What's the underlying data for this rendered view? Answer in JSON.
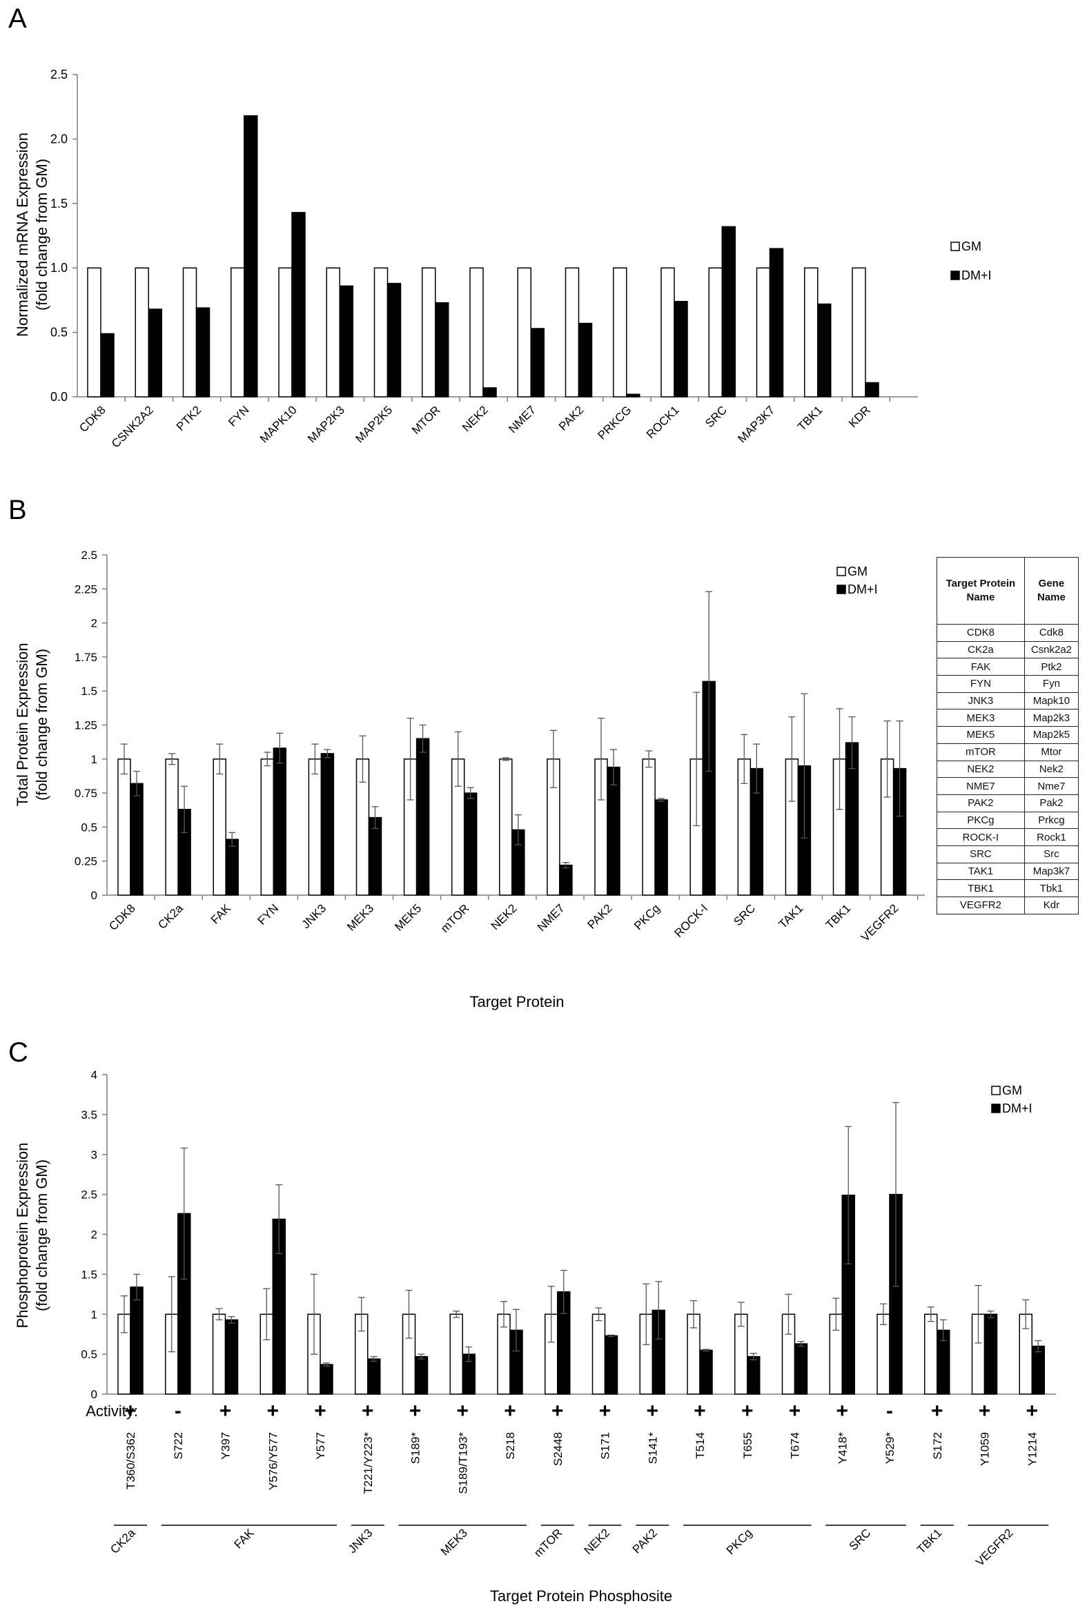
{
  "colors": {
    "gm": "#ffffff",
    "dmi": "#000000",
    "axis": "#7f7f7f",
    "text": "#000000"
  },
  "panels": [
    {
      "id": "A",
      "letter": "A",
      "chart_data": {
        "type": "bar",
        "title": "",
        "xlabel": "",
        "ylabel": [
          "Normalized mRNA Expression",
          "(fold change from GM)"
        ],
        "ylim": [
          0,
          2.5
        ],
        "yticks": [
          "0.0",
          "0.5",
          "1.0",
          "1.5",
          "2.0",
          "2.5"
        ],
        "legend": [
          "GM",
          "DM+I"
        ],
        "legend_position": "right",
        "categories": [
          "CDK8",
          "CSNK2A2",
          "PTK2",
          "FYN",
          "MAPK10",
          "MAP2K3",
          "MAP2K5",
          "MTOR",
          "NEK2",
          "NME7",
          "PAK2",
          "PRKCG",
          "ROCK1",
          "SRC",
          "MAP3K7",
          "TBK1",
          "KDR"
        ],
        "series": [
          {
            "name": "GM",
            "values": [
              1,
              1,
              1,
              1,
              1,
              1,
              1,
              1,
              1,
              1,
              1,
              1,
              1,
              1,
              1,
              1,
              1
            ]
          },
          {
            "name": "DM+I",
            "values": [
              0.49,
              0.68,
              0.69,
              2.18,
              1.43,
              0.86,
              0.88,
              0.73,
              0.07,
              0.53,
              0.57,
              0.02,
              0.74,
              1.32,
              1.15,
              0.72,
              0.11
            ]
          }
        ]
      }
    },
    {
      "id": "B",
      "letter": "B",
      "chart_data": {
        "type": "bar",
        "title": "",
        "xlabel": "Target Protein",
        "ylabel": [
          "Total Protein Expression",
          "(fold change from GM)"
        ],
        "ylim": [
          0,
          2.5
        ],
        "yticks": [
          "0",
          "0.25",
          "0.5",
          "0.75",
          "1",
          "1.25",
          "1.5",
          "1.75",
          "2",
          "2.25",
          "2.5"
        ],
        "legend": [
          "GM",
          "DM+I"
        ],
        "legend_position": "top-right",
        "categories": [
          "CDK8",
          "CK2a",
          "FAK",
          "FYN",
          "JNK3",
          "MEK3",
          "MEK5",
          "mTOR",
          "NEK2",
          "NME7",
          "PAK2",
          "PKCg",
          "ROCK-I",
          "SRC",
          "TAK1",
          "TBK1",
          "VEGFR2"
        ],
        "series": [
          {
            "name": "GM",
            "values": [
              1,
              1,
              1,
              1,
              1,
              1,
              1,
              1,
              1,
              1,
              1,
              1,
              1,
              1,
              1,
              1,
              1
            ],
            "errors": [
              0.11,
              0.04,
              0.11,
              0.05,
              0.11,
              0.17,
              0.3,
              0.2,
              0.01,
              0.21,
              0.3,
              0.06,
              0.49,
              0.18,
              0.31,
              0.37,
              0.28
            ]
          },
          {
            "name": "DM+I",
            "values": [
              0.82,
              0.63,
              0.41,
              1.08,
              1.04,
              0.57,
              1.15,
              0.75,
              0.48,
              0.22,
              0.94,
              0.7,
              1.57,
              0.93,
              0.95,
              1.12,
              0.93
            ],
            "errors": [
              0.09,
              0.17,
              0.05,
              0.11,
              0.03,
              0.08,
              0.1,
              0.04,
              0.11,
              0.02,
              0.13,
              0.01,
              0.66,
              0.18,
              0.53,
              0.19,
              0.35
            ]
          }
        ]
      }
    },
    {
      "id": "C",
      "letter": "C",
      "chart_data": {
        "type": "bar",
        "title": "",
        "xlabel": "Target Protein Phosphosite",
        "ylabel": [
          "Phosphoprotein Expression",
          "(fold change from GM)"
        ],
        "ylim": [
          0,
          4
        ],
        "yticks": [
          "0",
          "0.5",
          "1",
          "1.5",
          "2",
          "2.5",
          "3",
          "3.5",
          "4"
        ],
        "legend": [
          "GM",
          "DM+I"
        ],
        "legend_position": "top-right",
        "activity_label": "Activity:",
        "categories": [
          "T360/S362",
          "S722",
          "Y397",
          "Y576/Y577",
          "Y577",
          "T221/Y223*",
          "S189*",
          "S189/T193*",
          "S218",
          "S2448",
          "S171",
          "S141*",
          "T514",
          "T655",
          "T674",
          "Y418*",
          "Y529*",
          "S172",
          "Y1059",
          "Y1214"
        ],
        "activity": [
          "+",
          "-",
          "+",
          "+",
          "+",
          "+",
          "+",
          "+",
          "+",
          "+",
          "+",
          "+",
          "+",
          "+",
          "+",
          "+",
          "-",
          "+",
          "+",
          "+"
        ],
        "series": [
          {
            "name": "GM",
            "values": [
              1,
              1,
              1,
              1,
              1,
              1,
              1,
              1,
              1,
              1,
              1,
              1,
              1,
              1,
              1,
              1,
              1,
              1,
              1,
              1
            ],
            "errors": [
              0.23,
              0.47,
              0.07,
              0.32,
              0.5,
              0.21,
              0.3,
              0.04,
              0.16,
              0.35,
              0.08,
              0.38,
              0.17,
              0.15,
              0.25,
              0.2,
              0.13,
              0.09,
              0.36,
              0.18
            ]
          },
          {
            "name": "DM+I",
            "values": [
              1.34,
              2.26,
              0.93,
              2.19,
              0.37,
              0.44,
              0.47,
              0.5,
              0.8,
              1.28,
              0.73,
              1.05,
              0.55,
              0.47,
              0.63,
              2.49,
              2.5,
              0.8,
              1.0,
              0.6
            ],
            "errors": [
              0.16,
              0.82,
              0.04,
              0.43,
              0.02,
              0.03,
              0.03,
              0.09,
              0.26,
              0.27,
              0.01,
              0.36,
              0.01,
              0.04,
              0.03,
              0.86,
              1.15,
              0.13,
              0.04,
              0.07
            ]
          }
        ],
        "groups": [
          {
            "label": "CK2a",
            "from": 0,
            "to": 0
          },
          {
            "label": "FAK",
            "from": 1,
            "to": 4
          },
          {
            "label": "JNK3",
            "from": 5,
            "to": 5
          },
          {
            "label": "MEK3",
            "from": 6,
            "to": 8
          },
          {
            "label": "mTOR",
            "from": 9,
            "to": 9
          },
          {
            "label": "NEK2",
            "from": 10,
            "to": 10
          },
          {
            "label": "PAK2",
            "from": 11,
            "to": 11
          },
          {
            "label": "PKCg",
            "from": 12,
            "to": 14
          },
          {
            "label": "SRC",
            "from": 15,
            "to": 16
          },
          {
            "label": "TBK1",
            "from": 17,
            "to": 17
          },
          {
            "label": "VEGFR2",
            "from": 18,
            "to": 19
          }
        ]
      }
    }
  ],
  "mapping_table": {
    "headers": [
      "Target Protein Name",
      "Gene Name"
    ],
    "rows": [
      [
        "CDK8",
        "Cdk8"
      ],
      [
        "CK2a",
        "Csnk2a2"
      ],
      [
        "FAK",
        "Ptk2"
      ],
      [
        "FYN",
        "Fyn"
      ],
      [
        "JNK3",
        "Mapk10"
      ],
      [
        "MEK3",
        "Map2k3"
      ],
      [
        "MEK5",
        "Map2k5"
      ],
      [
        "mTOR",
        "Mtor"
      ],
      [
        "NEK2",
        "Nek2"
      ],
      [
        "NME7",
        "Nme7"
      ],
      [
        "PAK2",
        "Pak2"
      ],
      [
        "PKCg",
        "Prkcg"
      ],
      [
        "ROCK-I",
        "Rock1"
      ],
      [
        "SRC",
        "Src"
      ],
      [
        "TAK1",
        "Map3k7"
      ],
      [
        "TBK1",
        "Tbk1"
      ],
      [
        "VEGFR2",
        "Kdr"
      ]
    ]
  }
}
